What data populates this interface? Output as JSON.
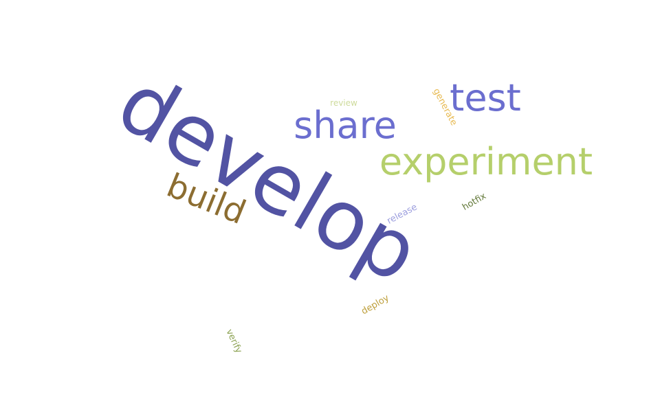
{
  "words": [
    {
      "id": "develop",
      "text": "develop",
      "color": "#5253a3"
    },
    {
      "id": "test",
      "text": "test",
      "color": "#6b6ecf"
    },
    {
      "id": "share",
      "text": "share",
      "color": "#6b6ecf"
    },
    {
      "id": "experiment",
      "text": "experiment",
      "color": "#b5cf6b"
    },
    {
      "id": "build",
      "text": "build",
      "color": "#8c6d31"
    },
    {
      "id": "review",
      "text": "review",
      "color": "#cedb9c"
    },
    {
      "id": "generate",
      "text": "generate",
      "color": "#e7ba52"
    },
    {
      "id": "release",
      "text": "release",
      "color": "#9c9ede"
    },
    {
      "id": "hotfix",
      "text": "hotfix",
      "color": "#637939"
    },
    {
      "id": "deploy",
      "text": "deploy",
      "color": "#bd9e39"
    },
    {
      "id": "verify",
      "text": "verify",
      "color": "#8ca252"
    }
  ]
}
